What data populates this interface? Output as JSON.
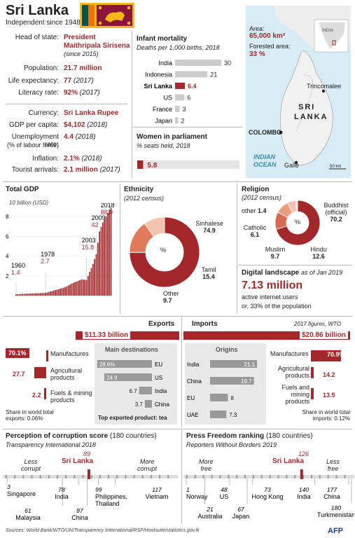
{
  "title": "Sri Lanka",
  "subtitle": "Independent since 1948",
  "facts": {
    "head_label": "Head of state:",
    "head_value1": "President",
    "head_value2": "Maithripala Sirisena",
    "head_note": "(since 2015)",
    "pop_label": "Population:",
    "pop_value": "21.7 million",
    "life_label": "Life expectancy:",
    "life_value": "77",
    "life_note": "(2017)",
    "lit_label": "Literacy rate:",
    "lit_value": "92%",
    "lit_note": "(2017)",
    "cur_label": "Currency:",
    "cur_value": "Sri Lanka Rupee",
    "gdppc_label": "GDP per capita:",
    "gdppc_value": "$4,102",
    "gdppc_note": "(2018)",
    "unemp_label": "Unemployment rate:",
    "unemp_label2": "(% of labour force)",
    "unemp_value": "4.4",
    "unemp_note": "(2018)",
    "infl_label": "Inflation:",
    "infl_value": "2.1%",
    "infl_note": "(2018)",
    "tour_label": "Tourist arrivals:",
    "tour_value": "2.1 million",
    "tour_note": "(2017)"
  },
  "infant": {
    "title": "Infant mortality",
    "subtitle": "Deaths per 1,000 births, 2018",
    "countries": [
      "India",
      "Indonesia",
      "Sri Lanka",
      "US",
      "France",
      "Japan"
    ],
    "values": [
      30,
      21,
      6.4,
      6,
      3,
      2
    ],
    "labels": [
      "30",
      "21",
      "6.4",
      "6",
      "3",
      "2"
    ]
  },
  "women": {
    "title": "Women in parliament",
    "subtitle": "% seats held, 2018",
    "value": 5.8,
    "label": "5.8"
  },
  "map": {
    "area_label": "Area:",
    "area_value": "65,000 km²",
    "forest_label": "Forested area:",
    "forest_value": "33 %",
    "india": "INDIA",
    "trinco": "Trincomalee",
    "sri": "SRI",
    "lanka": "LANKA",
    "colombo": "COLOMBO",
    "ocean1": "INDIAN",
    "ocean2": "OCEAN",
    "galle": "Galle",
    "scale": "50 km"
  },
  "gdp": {
    "title": "Total GDP",
    "unit": "10 billion (USD)",
    "ticks": [
      "2",
      "4",
      "6",
      "8"
    ],
    "annotations": [
      {
        "year": "1960",
        "value": "1.4"
      },
      {
        "year": "1978",
        "value": "2.7"
      },
      {
        "year": "2003",
        "value": "15.8"
      },
      {
        "year": "2009",
        "value": "42"
      },
      {
        "year": "2018",
        "value": "88.9"
      }
    ]
  },
  "ethnicity": {
    "title": "Ethnicity",
    "subtitle": "(2012 census)",
    "center": "%",
    "items": [
      {
        "name": "Sinhalese",
        "value": "74.9"
      },
      {
        "name": "Tamil",
        "value": "15.4"
      },
      {
        "name": "Other",
        "value": "9.7"
      }
    ]
  },
  "religion": {
    "title": "Religion",
    "subtitle": "(2012 census)",
    "center": "%",
    "buddhist": "Buddhist",
    "buddhist2": "(official)",
    "buddhist_v": "70.2",
    "hindu": "Hindu",
    "hindu_v": "12.6",
    "muslim": "Muslim",
    "muslim_v": "9.7",
    "catholic": "Catholic",
    "catholic_v": "6.1",
    "other": "other",
    "other_v": "1.4"
  },
  "digital": {
    "title": "Digital landscape",
    "date": "as of Jan 2019",
    "value": "7.13 million",
    "line1": "active internet users",
    "line2": "or, 33% of the population"
  },
  "trade": {
    "exports_title": "Exports",
    "imports_title": "Imports",
    "note": "2017 figures, WTO",
    "exports_total": "$11.33 billion",
    "imports_total": "$20.86 billion",
    "exp_items": [
      {
        "pct": "70.1%",
        "name1": "Manufactures",
        "name2": ""
      },
      {
        "pct": "27.7",
        "name1": "Agricultural",
        "name2": "products"
      },
      {
        "pct": "2.2",
        "name1": "Fuels & mining",
        "name2": "products"
      }
    ],
    "exp_values": [
      70.1,
      27.7,
      2.2
    ],
    "exp_share1": "Share in world total",
    "exp_share2": "exports: 0.06%",
    "dest_title": "Main destinations",
    "dest_values": [
      28.6,
      24.9,
      6.7,
      3.7
    ],
    "dest_labels": [
      "28.6%",
      "24.9",
      "6.7",
      "3.7"
    ],
    "dest_names": [
      "EU",
      "US",
      "India",
      "China"
    ],
    "top_product": "Top exported product: tea",
    "orig_title": "Origins",
    "orig_names": [
      "India",
      "China",
      "EU",
      "UAE"
    ],
    "orig_values": [
      21.1,
      19.7,
      8,
      7.3
    ],
    "orig_labels": [
      "21.1",
      "19.7",
      "8",
      "7.3"
    ],
    "imp_items": [
      {
        "pct": "70.9%",
        "name1": "Manufactures",
        "name2": "",
        "name3": ""
      },
      {
        "pct": "14.2",
        "name1": "Agricultural",
        "name2": "products",
        "name3": ""
      },
      {
        "pct": "13.5",
        "name1": "Fuels and",
        "name2": "mining",
        "name3": "products"
      }
    ],
    "imp_values": [
      70.9,
      14.2,
      13.5
    ],
    "imp_share1": "Share in world total",
    "imp_share2": "imports: 0.12%"
  },
  "corruption": {
    "title": "Perception of corruption score",
    "title2": "(180 countries)",
    "source": "Transparency International 2018",
    "less": "Less",
    "less2": "corrupt",
    "more": "More",
    "more2": "corrupt",
    "sl_rank": "89",
    "sl_name": "Sri Lanka",
    "items": [
      {
        "rank": "3",
        "name": "Singapore"
      },
      {
        "rank": "61",
        "name": "Malaysia"
      },
      {
        "rank": "78",
        "name": "India"
      },
      {
        "rank": "87",
        "name": "China"
      },
      {
        "rank": "99",
        "name": "Philippines,"
      },
      {
        "rank": "",
        "name": "Thailand"
      },
      {
        "rank": "117",
        "name": "Vietnam"
      }
    ]
  },
  "press": {
    "title": "Press Freedom ranking",
    "title2": "(180 countries)",
    "source": "Reporters Without Borders 2019",
    "more": "More",
    "more2": "free",
    "less": "Less",
    "less2": "free",
    "sl_rank": "126",
    "sl_name": "Sri Lanka",
    "items": [
      {
        "rank": "1",
        "name": "Norway"
      },
      {
        "rank": "21",
        "name": "Australia"
      },
      {
        "rank": "48",
        "name": "US"
      },
      {
        "rank": "67",
        "name": "Japan"
      },
      {
        "rank": "73",
        "name": "Hong Kong"
      },
      {
        "rank": "140",
        "name": "India"
      },
      {
        "rank": "177",
        "name": "China"
      },
      {
        "rank": "180",
        "name": "Turkmenistan"
      }
    ]
  },
  "footer": "Sources: World Bank/WTO/UN/Transparency International/RSF/Hootsuite/statistics.gov.lk",
  "logo": "AFP",
  "chart_data": [
    {
      "type": "bar",
      "title": "Infant mortality",
      "subtitle": "Deaths per 1,000 births, 2018",
      "categories": [
        "India",
        "Indonesia",
        "Sri Lanka",
        "US",
        "France",
        "Japan"
      ],
      "values": [
        30,
        21,
        6.4,
        6,
        3,
        2
      ]
    },
    {
      "type": "bar",
      "title": "Women in parliament",
      "subtitle": "% seats held, 2018",
      "categories": [
        "Sri Lanka"
      ],
      "values": [
        5.8
      ]
    },
    {
      "type": "bar",
      "title": "Total GDP",
      "ylabel": "10 billion (USD)",
      "x": [
        1960,
        1978,
        2003,
        2009,
        2018
      ],
      "values": [
        1.4,
        2.7,
        15.8,
        42,
        88.9
      ],
      "ylim": [
        0,
        90
      ]
    },
    {
      "type": "pie",
      "title": "Ethnicity",
      "subtitle": "(2012 census)",
      "categories": [
        "Sinhalese",
        "Tamil",
        "Other"
      ],
      "values": [
        74.9,
        15.4,
        9.7
      ]
    },
    {
      "type": "pie",
      "title": "Religion",
      "subtitle": "(2012 census)",
      "categories": [
        "Buddhist (official)",
        "Hindu",
        "Muslim",
        "Catholic",
        "other"
      ],
      "values": [
        70.2,
        12.6,
        9.7,
        6.1,
        1.4
      ]
    },
    {
      "type": "bar",
      "title": "Exports",
      "categories": [
        "Manufactures",
        "Agricultural products",
        "Fuels & mining products"
      ],
      "values": [
        70.1,
        27.7,
        2.2
      ]
    },
    {
      "type": "bar",
      "title": "Main destinations",
      "categories": [
        "EU",
        "US",
        "India",
        "China"
      ],
      "values": [
        28.6,
        24.9,
        6.7,
        3.7
      ]
    },
    {
      "type": "bar",
      "title": "Origins",
      "categories": [
        "India",
        "China",
        "EU",
        "UAE"
      ],
      "values": [
        21.1,
        19.7,
        8,
        7.3
      ]
    },
    {
      "type": "bar",
      "title": "Imports",
      "categories": [
        "Manufactures",
        "Agricultural products",
        "Fuels and mining products"
      ],
      "values": [
        70.9,
        14.2,
        13.5
      ]
    }
  ]
}
